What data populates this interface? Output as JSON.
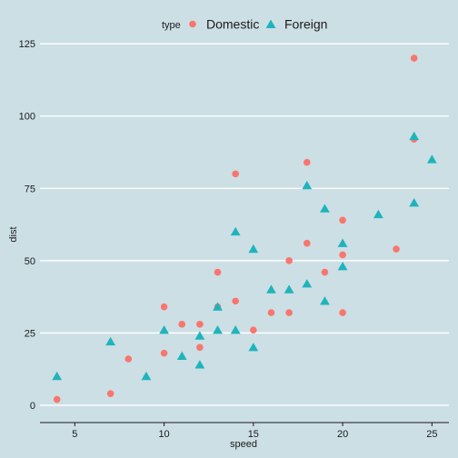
{
  "chart_data": {
    "type": "scatter",
    "title": "",
    "xlabel": "speed",
    "ylabel": "dist",
    "xlim": [
      3.05,
      25.95
    ],
    "ylim": [
      -6,
      126
    ],
    "x_ticks": [
      5,
      10,
      15,
      20,
      25
    ],
    "y_ticks": [
      0,
      25,
      50,
      75,
      100,
      125
    ],
    "grid": "horizontal",
    "legend_position": "top",
    "legend_title": "type",
    "background_color": "#ccdfe5",
    "series": [
      {
        "name": "Domestic",
        "marker": "circle",
        "color": "#f8766d",
        "points": [
          [
            4,
            2
          ],
          [
            7,
            4
          ],
          [
            8,
            16
          ],
          [
            10,
            18
          ],
          [
            10,
            34
          ],
          [
            11,
            28
          ],
          [
            12,
            20
          ],
          [
            12,
            28
          ],
          [
            13,
            34
          ],
          [
            13,
            46
          ],
          [
            14,
            36
          ],
          [
            14,
            80
          ],
          [
            15,
            26
          ],
          [
            16,
            32
          ],
          [
            17,
            32
          ],
          [
            17,
            50
          ],
          [
            18,
            56
          ],
          [
            18,
            84
          ],
          [
            19,
            46
          ],
          [
            20,
            32
          ],
          [
            20,
            52
          ],
          [
            20,
            64
          ],
          [
            23,
            54
          ],
          [
            24,
            92
          ],
          [
            24,
            120
          ]
        ]
      },
      {
        "name": "Foreign",
        "marker": "triangle",
        "color": "#1fb4bc",
        "points": [
          [
            4,
            10
          ],
          [
            7,
            22
          ],
          [
            9,
            10
          ],
          [
            10,
            26
          ],
          [
            11,
            17
          ],
          [
            12,
            14
          ],
          [
            12,
            24
          ],
          [
            13,
            26
          ],
          [
            13,
            34
          ],
          [
            14,
            26
          ],
          [
            14,
            60
          ],
          [
            15,
            20
          ],
          [
            15,
            54
          ],
          [
            16,
            40
          ],
          [
            17,
            40
          ],
          [
            18,
            42
          ],
          [
            18,
            76
          ],
          [
            19,
            36
          ],
          [
            19,
            68
          ],
          [
            20,
            48
          ],
          [
            20,
            56
          ],
          [
            22,
            66
          ],
          [
            24,
            70
          ],
          [
            24,
            93
          ],
          [
            25,
            85
          ]
        ]
      }
    ]
  }
}
